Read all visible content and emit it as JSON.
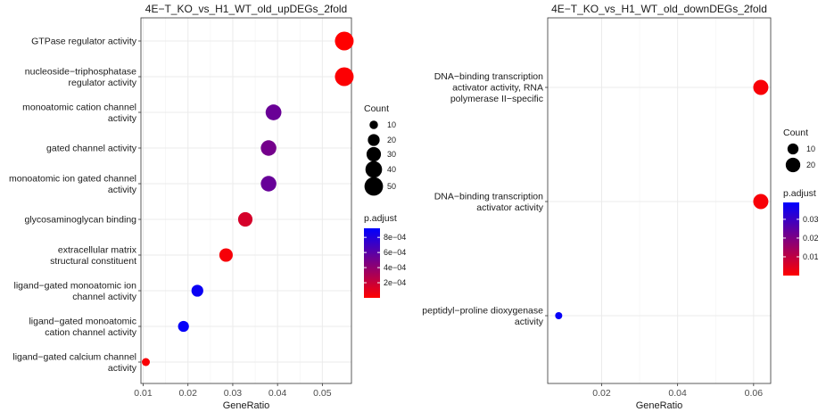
{
  "chart_data": [
    {
      "type": "scatter",
      "title": "4E−T_KO_vs_H1_WT_old_upDEGs_2fold",
      "xlabel": "GeneRatio",
      "ylabel": "",
      "xlim": [
        0.0095,
        0.0565
      ],
      "xticks": [
        "0.01",
        "0.02",
        "0.03",
        "0.04",
        "0.05"
      ],
      "xtick_values": [
        0.01,
        0.02,
        0.03,
        0.04,
        0.05
      ],
      "grid": true,
      "legend": "right",
      "points": [
        {
          "term": "GTPase regulator activity",
          "lines": [
            "GTPase regulator activity"
          ],
          "gene_ratio": 0.0549,
          "count": 51,
          "p_adjust": 0.0
        },
        {
          "term": "nucleoside−triphosphatase regulator activity",
          "lines": [
            "nucleoside−triphosphatase",
            "regulator activity"
          ],
          "gene_ratio": 0.0549,
          "count": 51,
          "p_adjust": 1e-05
        },
        {
          "term": "monoatomic cation channel activity",
          "lines": [
            "monoatomic cation channel",
            "activity"
          ],
          "gene_ratio": 0.0391,
          "count": 36,
          "p_adjust": 0.00054
        },
        {
          "term": "gated channel activity",
          "lines": [
            "gated channel activity"
          ],
          "gene_ratio": 0.038,
          "count": 35,
          "p_adjust": 0.0005
        },
        {
          "term": "monoatomic ion gated channel activity",
          "lines": [
            "monoatomic ion gated channel",
            "activity"
          ],
          "gene_ratio": 0.038,
          "count": 35,
          "p_adjust": 0.00055
        },
        {
          "term": "glycosaminoglycan binding",
          "lines": [
            "glycosaminoglycan binding"
          ],
          "gene_ratio": 0.0328,
          "count": 30,
          "p_adjust": 0.00015
        },
        {
          "term": "extracellular matrix structural constituent",
          "lines": [
            "extracellular matrix",
            "structural constituent"
          ],
          "gene_ratio": 0.0285,
          "count": 26,
          "p_adjust": 3e-05
        },
        {
          "term": "ligand−gated monoatomic ion channel activity",
          "lines": [
            "ligand−gated monoatomic ion",
            "channel activity"
          ],
          "gene_ratio": 0.0221,
          "count": 20,
          "p_adjust": 0.00088
        },
        {
          "term": "ligand−gated monoatomic cation channel activity",
          "lines": [
            "ligand−gated monoatomic",
            "cation channel activity"
          ],
          "gene_ratio": 0.019,
          "count": 17,
          "p_adjust": 0.0009
        },
        {
          "term": "ligand−gated calcium channel activity",
          "lines": [
            "ligand−gated calcium channel",
            "activity"
          ],
          "gene_ratio": 0.0106,
          "count": 9,
          "p_adjust": 2e-05
        }
      ],
      "size_legend": {
        "title": "Count",
        "values": [
          10,
          20,
          30,
          40,
          50
        ]
      },
      "color_legend": {
        "title": "p.adjust",
        "min": 0.0,
        "max": 0.00092,
        "ticks": [
          0.0008,
          0.0006,
          0.0004,
          0.0002
        ],
        "tick_labels": [
          "8e−04",
          "6e−04",
          "4e−04",
          "2e−04"
        ],
        "low_color": "#ff0000",
        "high_color": "#0000ff"
      }
    },
    {
      "type": "scatter",
      "title": "4E−T_KO_vs_H1_WT_old_downDEGs_2fold",
      "xlabel": "GeneRatio",
      "ylabel": "",
      "xlim": [
        0.0058,
        0.0645
      ],
      "xticks": [
        "0.02",
        "0.04",
        "0.06"
      ],
      "xtick_values": [
        0.02,
        0.04,
        0.06
      ],
      "grid": true,
      "legend": "right",
      "points": [
        {
          "term": "DNA−binding transcription activator activity, RNA polymerase II−specific",
          "lines": [
            "DNA−binding transcription",
            "activator activity, RNA",
            "polymerase II−specific"
          ],
          "gene_ratio": 0.0619,
          "count": 22,
          "p_adjust": 0.001
        },
        {
          "term": "DNA−binding transcription activator activity",
          "lines": [
            "DNA−binding transcription",
            "activator activity"
          ],
          "gene_ratio": 0.0619,
          "count": 22,
          "p_adjust": 0.001
        },
        {
          "term": "peptidyl−proline dioxygenase activity",
          "lines": [
            "peptidyl−proline dioxygenase",
            "activity"
          ],
          "gene_ratio": 0.0087,
          "count": 3,
          "p_adjust": 0.038
        }
      ],
      "size_legend": {
        "title": "Count",
        "values": [
          10,
          20
        ]
      },
      "color_legend": {
        "title": "p.adjust",
        "min": 0.0,
        "max": 0.039,
        "ticks": [
          0.03,
          0.02,
          0.01
        ],
        "tick_labels": [
          "0.03",
          "0.02",
          "0.01"
        ],
        "low_color": "#ff0000",
        "high_color": "#0000ff"
      }
    }
  ]
}
